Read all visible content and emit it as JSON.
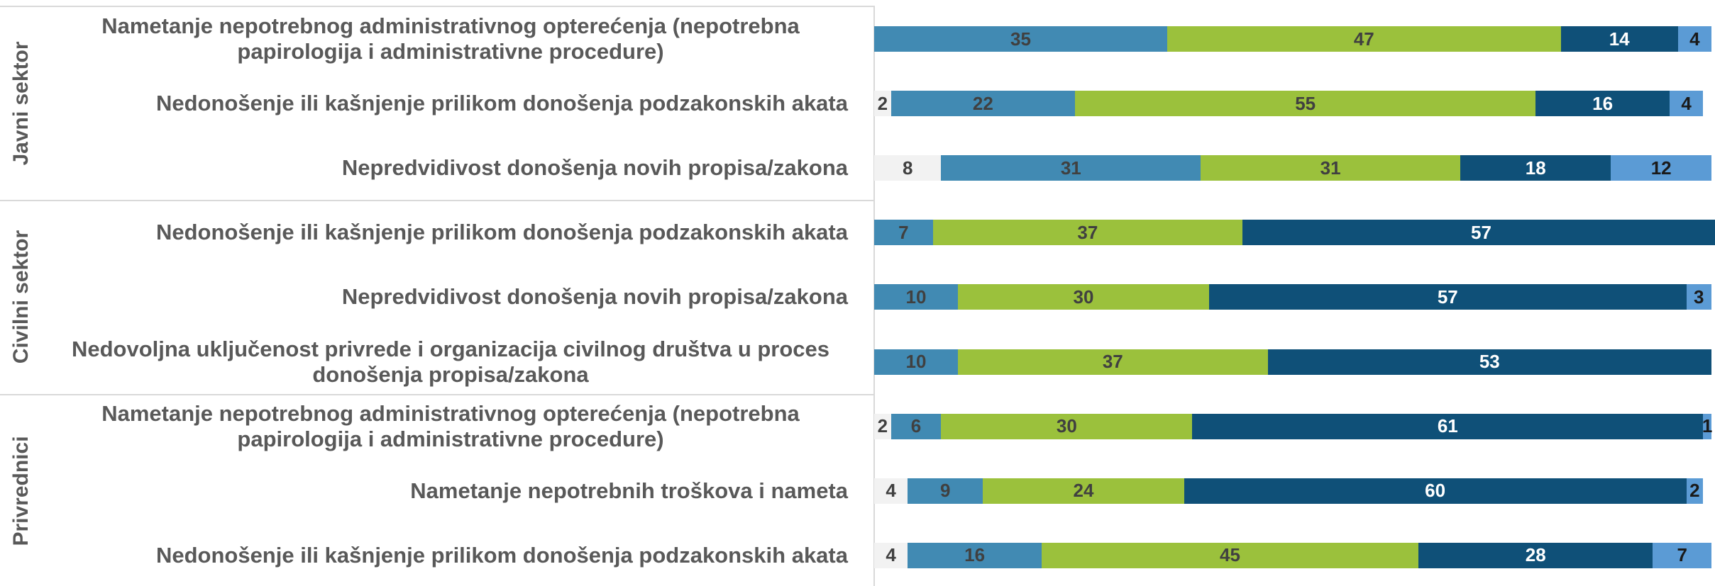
{
  "chart_data": {
    "type": "stacked-bar-horizontal",
    "groups": [
      {
        "label": "Javni sektor",
        "rows": [
          0,
          1,
          2
        ]
      },
      {
        "label": "Civilni sektor",
        "rows": [
          3,
          4,
          5
        ]
      },
      {
        "label": "Privrednici",
        "rows": [
          6,
          7,
          8
        ]
      }
    ],
    "categories": [
      "Nametanje nepotrebnog administrativnog opterećenja (nepotrebna papirologija i administrativne procedure)",
      "Nedonošenje ili kašnjenje prilikom donošenja podzakonskih akata",
      "Nepredvidivost donošenja novih propisa/zakona",
      "Nedonošenje ili kašnjenje prilikom donošenja podzakonskih akata",
      "Nepredvidivost donošenja novih propisa/zakona",
      "Nedovoljna uključenost privrede i organizacija civilnog društva u proces donošenja propisa/zakona",
      "Nametanje nepotrebnog administrativnog opterećenja (nepotrebna papirologija i administrativne procedure)",
      "Nametanje nepotrebnih troškova i nameta",
      "Nedonošenje ili kašnjenje prilikom donošenja podzakonskih akata"
    ],
    "series": [
      {
        "color": "#f2f2f2",
        "text_color": "#404040",
        "values": [
          null,
          2,
          8,
          null,
          null,
          null,
          2,
          4,
          4
        ]
      },
      {
        "color": "#418ab3",
        "text_color": "#404040",
        "values": [
          35,
          22,
          31,
          7,
          10,
          10,
          6,
          9,
          16
        ]
      },
      {
        "color": "#9bc13c",
        "text_color": "#404040",
        "values": [
          47,
          55,
          31,
          37,
          30,
          37,
          30,
          24,
          45
        ]
      },
      {
        "color": "#0f5078",
        "text_color": "#ffffff",
        "values": [
          14,
          16,
          18,
          57,
          57,
          53,
          61,
          60,
          28
        ]
      },
      {
        "color": "#5b9bd5",
        "text_color": "#1a1a1a",
        "values": [
          4,
          4,
          12,
          null,
          3,
          null,
          1,
          2,
          7
        ]
      }
    ],
    "xlim": [
      0,
      100
    ]
  }
}
